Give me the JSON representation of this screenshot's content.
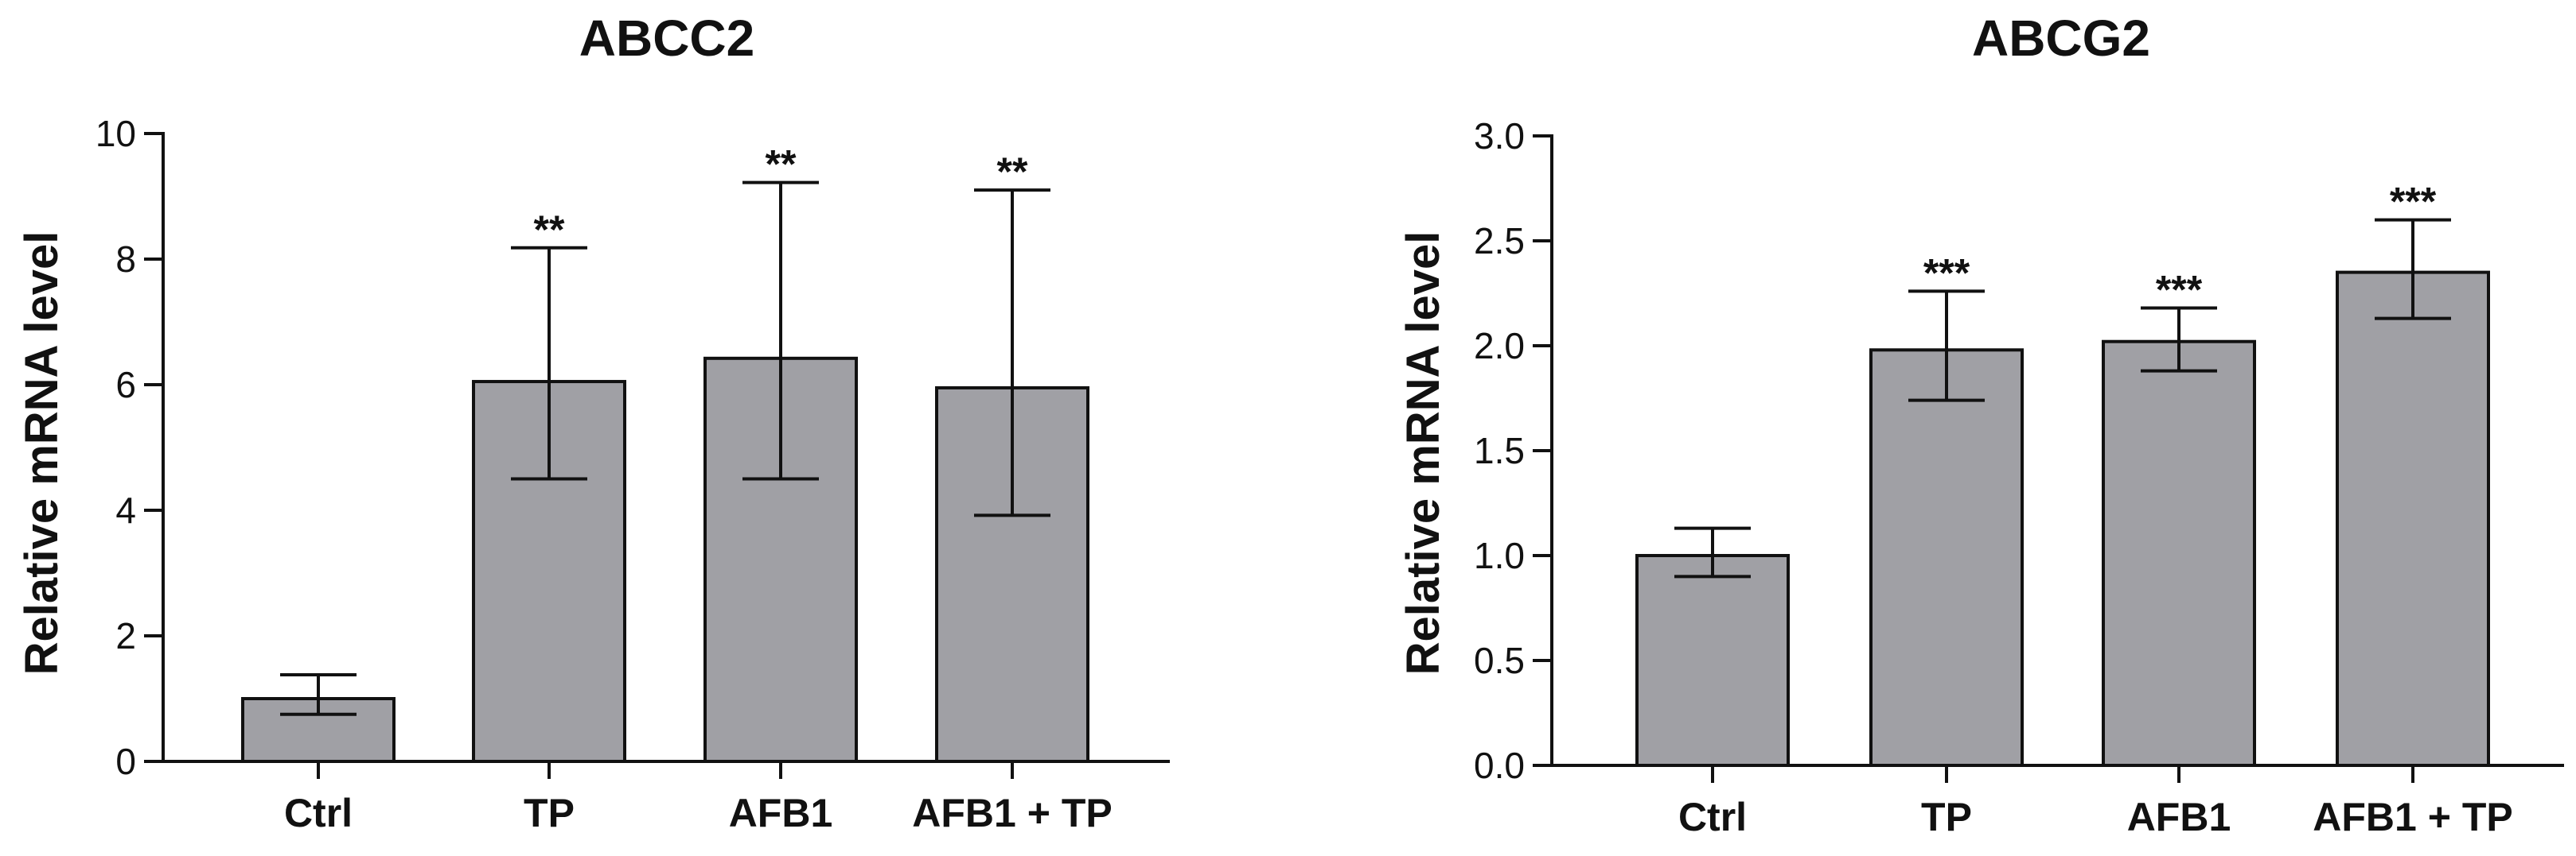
{
  "chart_data": [
    {
      "type": "bar",
      "title": "ABCC2",
      "xlabel": "",
      "ylabel": "Relative mRNA level",
      "categories": [
        "Ctrl",
        "TP",
        "AFB1",
        "AFB1 + TP"
      ],
      "values": [
        1.0,
        6.05,
        6.42,
        5.95
      ],
      "error_low": [
        0.75,
        4.5,
        4.5,
        3.92
      ],
      "error_high": [
        1.38,
        8.18,
        9.22,
        9.1
      ],
      "significance": [
        "",
        "**",
        "**",
        "**"
      ],
      "ylim": [
        0,
        10
      ],
      "yticks": [
        0,
        2,
        4,
        6,
        8,
        10
      ],
      "ytick_labels": [
        "0",
        "2",
        "4",
        "6",
        "8",
        "10"
      ],
      "bar_color": "#a0a0a5",
      "edge_color": "#111111"
    },
    {
      "type": "bar",
      "title": "ABCG2",
      "xlabel": "",
      "ylabel": "Relative mRNA level",
      "categories": [
        "Ctrl",
        "TP",
        "AFB1",
        "AFB1 + TP"
      ],
      "values": [
        1.0,
        1.98,
        2.02,
        2.35
      ],
      "error_low": [
        0.9,
        1.74,
        1.88,
        2.13
      ],
      "error_high": [
        1.13,
        2.26,
        2.18,
        2.6
      ],
      "significance": [
        "",
        "***",
        "***",
        "***"
      ],
      "ylim": [
        0,
        3
      ],
      "yticks": [
        0,
        0.5,
        1,
        1.5,
        2,
        2.5,
        3
      ],
      "ytick_labels": [
        "0.0",
        "0.5",
        "1.0",
        "1.5",
        "2.0",
        "2.5",
        "3.0"
      ],
      "bar_color": "#a0a0a5",
      "edge_color": "#111111"
    }
  ]
}
